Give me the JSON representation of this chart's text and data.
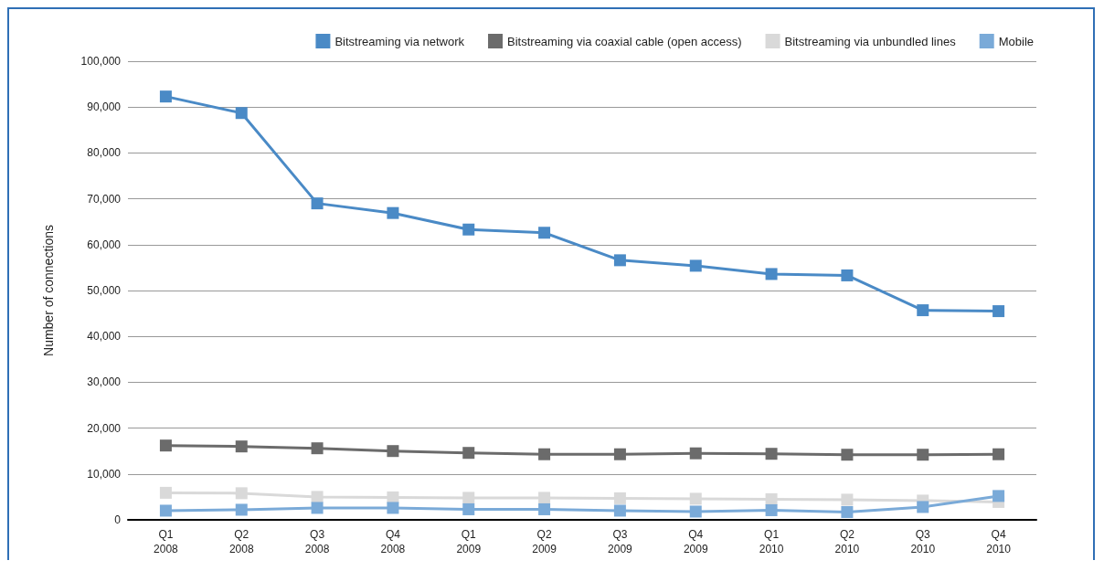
{
  "chart_data": {
    "type": "line",
    "ylabel": "Number of connections",
    "categories": [
      "Q1\n2008",
      "Q2\n2008",
      "Q3\n2008",
      "Q4\n2008",
      "Q1\n2009",
      "Q2\n2009",
      "Q3\n2009",
      "Q4\n2009",
      "Q1\n2010",
      "Q2\n2010",
      "Q3\n2010",
      "Q4\n2010"
    ],
    "series": [
      {
        "name": "Bitstreaming via network",
        "color": "#4a8ac6",
        "values": [
          92300,
          88700,
          69000,
          66900,
          63300,
          62600,
          56600,
          55400,
          53600,
          53300,
          45700,
          45500
        ]
      },
      {
        "name": "Bitstreaming via coaxial cable (open access)",
        "color": "#6b6b6b",
        "values": [
          16200,
          16000,
          15600,
          15000,
          14600,
          14300,
          14300,
          14500,
          14400,
          14200,
          14200,
          14300
        ]
      },
      {
        "name": "Bitstreaming via unbundled lines",
        "color": "#d9d9d9",
        "values": [
          5900,
          5800,
          5000,
          4900,
          4800,
          4800,
          4700,
          4600,
          4500,
          4400,
          4200,
          3900
        ]
      },
      {
        "name": "Mobile",
        "color": "#7aaad8",
        "values": [
          2000,
          2200,
          2600,
          2600,
          2300,
          2300,
          2000,
          1800,
          2100,
          1700,
          2800,
          5200
        ]
      }
    ],
    "ylim": [
      0,
      100000
    ],
    "yticks": [
      0,
      {
        "value": 10000,
        "label": "10,000"
      },
      {
        "value": 20000,
        "label": "20,000"
      },
      {
        "value": 30000,
        "label": "30,000"
      },
      {
        "value": 40000,
        "label": "40,000"
      },
      {
        "value": 50000,
        "label": "50,000"
      },
      {
        "value": 60000,
        "label": "60,000"
      },
      {
        "value": 70000,
        "label": "70,000"
      },
      {
        "value": 80000,
        "label": "80,000"
      },
      {
        "value": 90000,
        "label": "90,000"
      },
      {
        "value": 100000,
        "label": "100,000"
      }
    ],
    "grid": "y",
    "legend": "top right",
    "marker": "square",
    "line_style": "solid"
  }
}
